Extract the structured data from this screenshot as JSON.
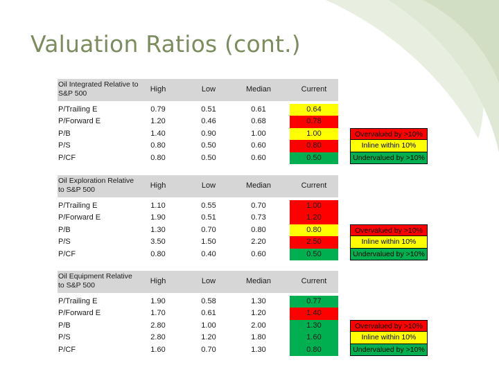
{
  "title": "Valuation Ratios (cont.)",
  "columns": [
    "High",
    "Low",
    "Median",
    "Current"
  ],
  "colors": {
    "over": "#ff0000",
    "inline": "#ffff00",
    "under": "#00b050",
    "header": "#d6d6d6",
    "title": "#7c8c5e"
  },
  "legend": {
    "over": "Overvalued by >10%",
    "inline": "Inline within 10%",
    "under": "Undervalued by >10%"
  },
  "sections": [
    {
      "label": "Oil Integrated Relative to S&P 500",
      "rows": [
        {
          "name": "P/Trailing E",
          "high": "0.79",
          "low": "0.51",
          "median": "0.61",
          "current": "0.64",
          "status": "inline"
        },
        {
          "name": "P/Forward E",
          "high": "1.20",
          "low": "0.46",
          "median": "0.68",
          "current": "0.78",
          "status": "over"
        },
        {
          "name": "P/B",
          "high": "1.40",
          "low": "0.90",
          "median": "1.00",
          "current": "1.00",
          "status": "inline"
        },
        {
          "name": "P/S",
          "high": "0.80",
          "low": "0.50",
          "median": "0.60",
          "current": "0.80",
          "status": "over"
        },
        {
          "name": "P/CF",
          "high": "0.80",
          "low": "0.50",
          "median": "0.60",
          "current": "0.50",
          "status": "under"
        }
      ]
    },
    {
      "label": "Oil Exploration Relative to S&P 500",
      "rows": [
        {
          "name": "P/Trailing E",
          "high": "1.10",
          "low": "0.55",
          "median": "0.70",
          "current": "1.00",
          "status": "over"
        },
        {
          "name": "P/Forward E",
          "high": "1.90",
          "low": "0.51",
          "median": "0.73",
          "current": "1.20",
          "status": "over"
        },
        {
          "name": "P/B",
          "high": "1.30",
          "low": "0.70",
          "median": "0.80",
          "current": "0.80",
          "status": "inline"
        },
        {
          "name": "P/S",
          "high": "3.50",
          "low": "1.50",
          "median": "2.20",
          "current": "2.50",
          "status": "over"
        },
        {
          "name": "P/CF",
          "high": "0.80",
          "low": "0.40",
          "median": "0.60",
          "current": "0.50",
          "status": "under"
        }
      ]
    },
    {
      "label": "Oil Equipment Relative to S&P 500",
      "rows": [
        {
          "name": "P/Trailing E",
          "high": "1.90",
          "low": "0.58",
          "median": "1.30",
          "current": "0.77",
          "status": "under"
        },
        {
          "name": "P/Forward E",
          "high": "1.70",
          "low": "0.61",
          "median": "1.20",
          "current": "1.40",
          "status": "over"
        },
        {
          "name": "P/B",
          "high": "2.80",
          "low": "1.00",
          "median": "2.00",
          "current": "1.30",
          "status": "under"
        },
        {
          "name": "P/S",
          "high": "2.80",
          "low": "1.20",
          "median": "1.80",
          "current": "1.60",
          "status": "under"
        },
        {
          "name": "P/CF",
          "high": "1.60",
          "low": "0.70",
          "median": "1.30",
          "current": "0.80",
          "status": "under"
        }
      ]
    }
  ]
}
